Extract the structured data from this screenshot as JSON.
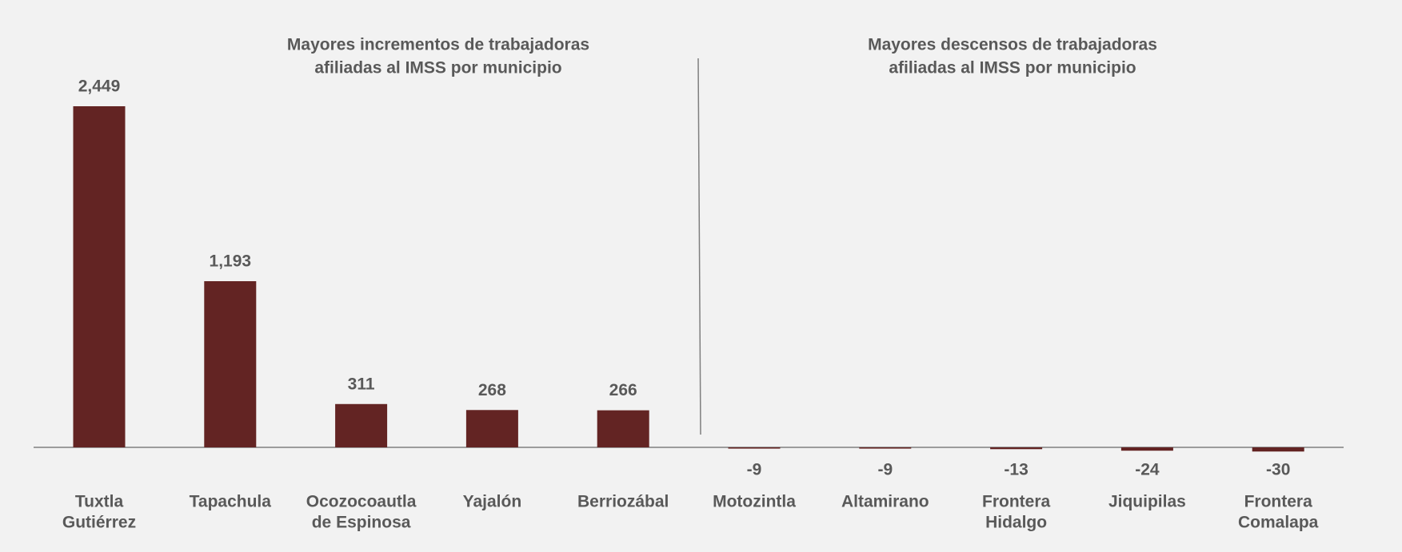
{
  "chart_data": {
    "type": "bar",
    "titles": [
      [
        "Mayores incrementos de trabajadoras",
        "afiliadas al IMSS por municipio"
      ],
      [
        "Mayores descensos de trabajadoras",
        "afiliadas al IMSS por municipio"
      ]
    ],
    "categories": [
      [
        "Tuxtla",
        "Gutiérrez"
      ],
      [
        "Tapachula"
      ],
      [
        "Ocozocoautla",
        "de Espinosa"
      ],
      [
        "Yajalón"
      ],
      [
        "Berriozábal"
      ],
      [
        "Motozintla"
      ],
      [
        "Altamirano"
      ],
      [
        "Frontera",
        "Hidalgo"
      ],
      [
        "Jiquipilas"
      ],
      [
        "Frontera",
        "Comalapa"
      ]
    ],
    "values": [
      2449,
      1193,
      311,
      268,
      266,
      -9,
      -9,
      -13,
      -24,
      -30
    ],
    "value_labels": [
      "2,449",
      "1,193",
      "311",
      "268",
      "266",
      "-9",
      "-9",
      "-13",
      "-24",
      "-30"
    ],
    "color": "#632423"
  }
}
